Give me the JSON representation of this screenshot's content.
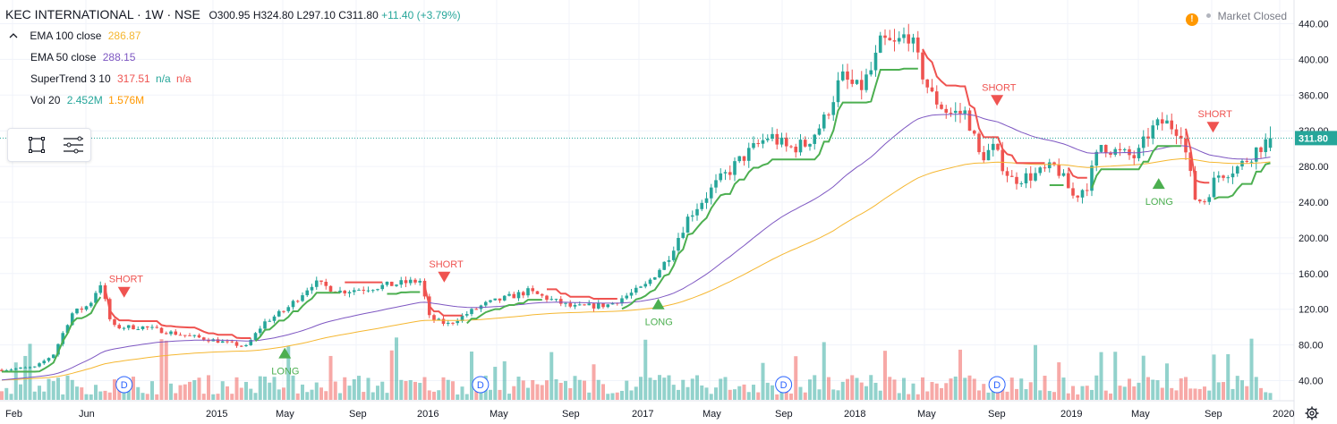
{
  "header": {
    "symbol": "KEC INTERNATIONAL · 1W · NSE",
    "open": "O300.95",
    "high": "H324.80",
    "low": "L297.10",
    "close": "C311.80",
    "change": "+11.40 (+3.79%)"
  },
  "indicators": [
    {
      "name": "EMA 100 close",
      "v1": "286.87",
      "v2": "",
      "v3": "",
      "color": "#f5b731"
    },
    {
      "name": "EMA 50 close",
      "v1": "288.15",
      "v2": "",
      "v3": "",
      "color": "#7e57c2"
    },
    {
      "name": "SuperTrend 3 10",
      "v1": "317.51",
      "v2": "n/a",
      "v3": "n/a",
      "color": "#ef5350"
    },
    {
      "name": "Vol 20",
      "v1": "2.452M",
      "v2": "1.576M",
      "v3": "",
      "color": "#26a69a",
      "color2": "#ff9800"
    }
  ],
  "market_status": "Market Closed",
  "price_scale": {
    "ticks": [
      "40.00",
      "80.00",
      "120.00",
      "160.00",
      "200.00",
      "240.00",
      "280.00",
      "320.00",
      "360.00",
      "400.00",
      "440.00"
    ],
    "last_price": "311.80"
  },
  "time_axis": [
    "Feb",
    "Jun",
    "2015",
    "May",
    "Sep",
    "2016",
    "May",
    "Sep",
    "2017",
    "May",
    "Sep",
    "2018",
    "May",
    "Sep",
    "2019",
    "May",
    "Sep",
    "2020"
  ],
  "dividend_marker": "D",
  "chart_data": {
    "type": "candlestick",
    "title": "KEC INTERNATIONAL · 1W · NSE",
    "xlabel": "",
    "ylabel": "",
    "ylim": [
      20,
      450
    ],
    "grid": true,
    "price_series": {
      "name": "KEC INTERNATIONAL",
      "x": [
        "2014-02",
        "2014-06",
        "2014-08",
        "2015-01",
        "2015-05",
        "2015-09",
        "2016-01",
        "2016-05",
        "2016-09",
        "2017-01",
        "2017-05",
        "2017-09",
        "2018-01",
        "2018-05",
        "2018-09",
        "2019-01",
        "2019-05",
        "2019-09",
        "2020-01"
      ],
      "close": [
        52,
        125,
        100,
        92,
        110,
        148,
        140,
        125,
        130,
        138,
        210,
        290,
        385,
        380,
        300,
        265,
        300,
        255,
        311.8
      ]
    },
    "series": [
      {
        "name": "EMA 100 close",
        "last": 286.87,
        "color": "#f5b731"
      },
      {
        "name": "EMA 50 close",
        "last": 288.15,
        "color": "#7e57c2"
      },
      {
        "name": "SuperTrend 3 10",
        "last": 317.51,
        "color": "#ef5350"
      },
      {
        "name": "Vol 20",
        "last": "2.452M",
        "average": "1.576M"
      }
    ],
    "signals": [
      {
        "label": "SHORT",
        "x": "2014-07",
        "price": 135
      },
      {
        "label": "LONG",
        "x": "2015-04",
        "price": 75
      },
      {
        "label": "SHORT",
        "x": "2016-01",
        "price": 152
      },
      {
        "label": "LONG",
        "x": "2017-01",
        "price": 130
      },
      {
        "label": "SHORT",
        "x": "2018-08",
        "price": 350
      },
      {
        "label": "LONG",
        "x": "2019-05",
        "price": 265
      },
      {
        "label": "SHORT",
        "x": "2019-08",
        "price": 320
      }
    ],
    "dividends": [
      "2014-07",
      "2016-03",
      "2017-08",
      "2018-08"
    ]
  }
}
